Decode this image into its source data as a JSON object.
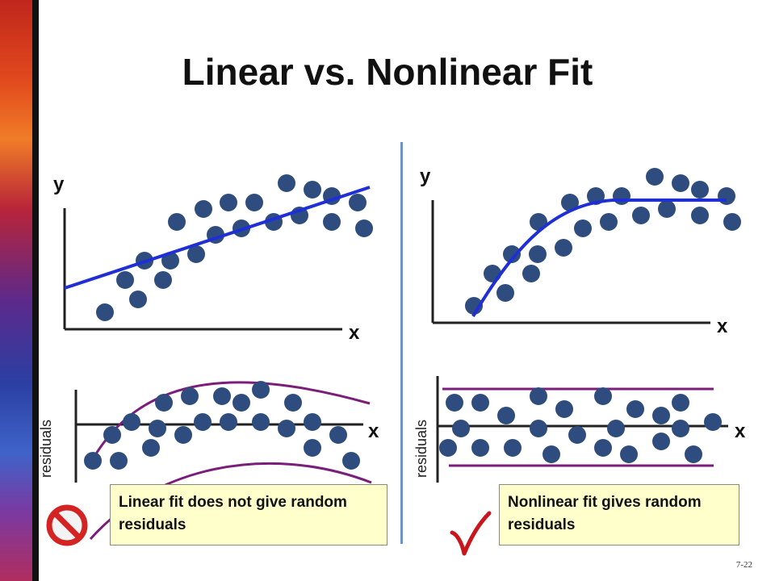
{
  "title": "Linear vs. Nonlinear Fit",
  "left_panel": {
    "scatter_y_label": "y",
    "scatter_x_label": "x",
    "residuals_y_label": "residuals",
    "residuals_x_label": "x",
    "caption": "Linear fit does not give random residuals",
    "verdict_icon": "prohibition-icon"
  },
  "right_panel": {
    "scatter_y_label": "y",
    "scatter_x_label": "x",
    "residuals_y_label": "residuals",
    "residuals_x_label": "x",
    "caption": "Nonlinear fit gives random residuals",
    "verdict_icon": "checkmark-icon"
  },
  "page_number": "7-22",
  "colors": {
    "point": "#2e4d7e",
    "fit_line": "#1f2fd6",
    "envelope": "#7b1d7a",
    "check": "#c8161c",
    "no_sign": "#d42323"
  }
}
